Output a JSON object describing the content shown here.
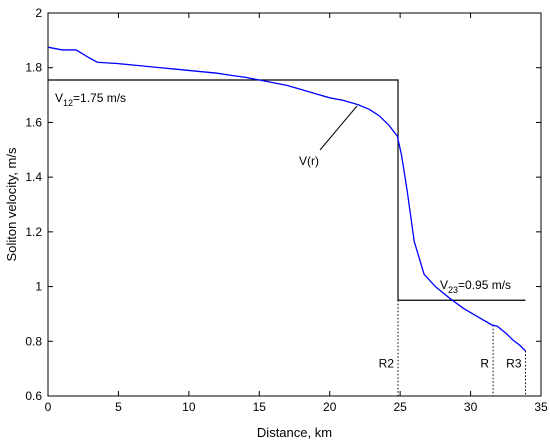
{
  "chart_data": {
    "type": "line",
    "title": "",
    "xlabel": "Distance, km",
    "ylabel": "Soliton velocity, m/s",
    "xlim": [
      0,
      35
    ],
    "ylim": [
      0.6,
      2
    ],
    "grid": false,
    "x_ticks": [
      "0",
      "5",
      "10",
      "15",
      "20",
      "25",
      "30",
      "35"
    ],
    "y_ticks": [
      "0.6",
      "0.8",
      "1",
      "1.2",
      "1.4",
      "1.6",
      "1.8",
      "2"
    ],
    "series": [
      {
        "color": "#0000ff",
        "x": [
          0,
          1,
          2,
          2.8,
          3.5,
          5,
          6,
          7,
          8,
          9,
          10,
          11,
          12,
          13,
          14,
          15,
          16,
          17,
          18,
          19,
          20,
          21,
          22,
          22.8,
          23.5,
          24.2,
          24.8,
          25.1,
          25.5,
          26,
          26.7,
          27.5,
          28.5,
          29.5,
          30.5,
          31.5,
          31.9,
          32.5,
          33,
          33.5,
          33.9
        ],
        "y": [
          1.875,
          1.865,
          1.865,
          1.84,
          1.82,
          1.815,
          1.81,
          1.805,
          1.8,
          1.795,
          1.79,
          1.785,
          1.78,
          1.772,
          1.765,
          1.755,
          1.745,
          1.735,
          1.72,
          1.705,
          1.69,
          1.68,
          1.665,
          1.648,
          1.625,
          1.59,
          1.55,
          1.48,
          1.35,
          1.165,
          1.045,
          1.0,
          0.958,
          0.92,
          0.89,
          0.86,
          0.855,
          0.83,
          0.805,
          0.785,
          0.765
        ]
      }
    ],
    "step_function": {
      "color": "#000000",
      "x": [
        0,
        24.85,
        24.85,
        33.9
      ],
      "y": [
        1.755,
        1.755,
        0.95,
        0.95
      ]
    },
    "markers": [
      {
        "label": "R2",
        "x": 24.85
      },
      {
        "label": "R",
        "x": 31.6
      },
      {
        "label": "R3",
        "x": 33.9
      }
    ],
    "annotations": {
      "v12": {
        "base": "V",
        "sub": "12",
        "rest": "=1.75 m/s"
      },
      "v23": {
        "base": "V",
        "sub": "23",
        "rest": "=0.95 m/s"
      },
      "vr": "V(r)"
    }
  }
}
